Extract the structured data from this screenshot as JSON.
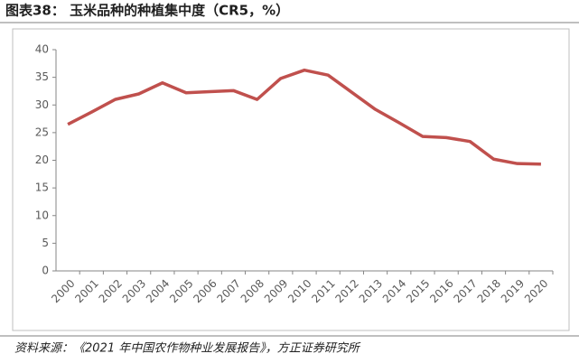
{
  "chart_data": {
    "type": "line",
    "title": "图表38：  玉米品种的种植集中度（CR5，%）",
    "source": "资料来源：《2021 年中国农作物种业发展报告》，方正证券研究所",
    "categories": [
      "2000",
      "2001",
      "2002",
      "2003",
      "2004",
      "2005",
      "2006",
      "2007",
      "2008",
      "2009",
      "2010",
      "2011",
      "2012",
      "2013",
      "2014",
      "2015",
      "2016",
      "2017",
      "2018",
      "2019",
      "2020"
    ],
    "series": [
      {
        "name": "CR5",
        "color": "#c0504d",
        "values": [
          26.5,
          28.7,
          31,
          32,
          34,
          32.2,
          32.4,
          32.6,
          31,
          34.8,
          36.3,
          35.4,
          32.3,
          29.2,
          26.8,
          24.3,
          24.1,
          23.4,
          20.2,
          19.4,
          19.3
        ]
      }
    ],
    "ylim": [
      0,
      40
    ],
    "yticks": [
      0,
      5,
      10,
      15,
      20,
      25,
      30,
      35,
      40
    ],
    "grid": false
  }
}
